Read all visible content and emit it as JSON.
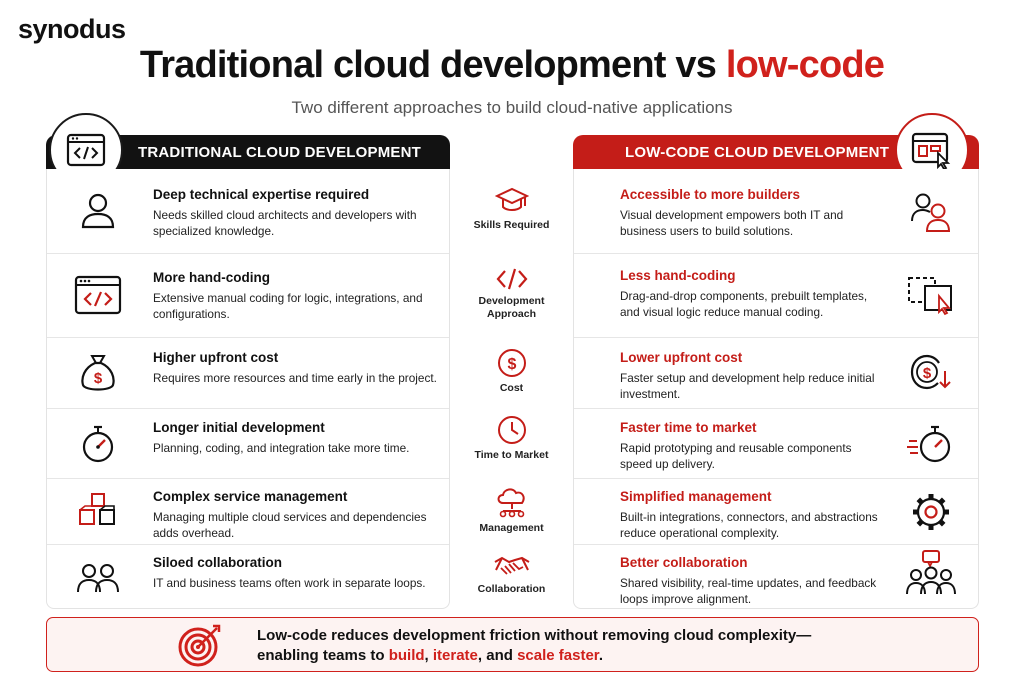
{
  "brand": {
    "logo": "synodus"
  },
  "header": {
    "title_main": "Traditional cloud development vs ",
    "title_accent": "low-code",
    "subtitle": "Two different approaches to build cloud-native applications"
  },
  "colors": {
    "accent": "#d0211c",
    "dark": "#121212"
  },
  "traditional": {
    "header": "TRADITIONAL CLOUD DEVELOPMENT",
    "header_icon": "code-window-icon",
    "rows": [
      {
        "title": "Deep technical expertise required",
        "desc": "Needs skilled cloud architects and developers with specialized knowledge.",
        "icon": "user-icon"
      },
      {
        "title": "More hand-coding",
        "desc": "Extensive manual coding for logic, integrations, and configurations.",
        "icon": "code-window-icon"
      },
      {
        "title": "Higher upfront cost",
        "desc": "Requires more resources and time early in the project.",
        "icon": "money-bag-icon"
      },
      {
        "title": "Longer initial development",
        "desc": "Planning, coding, and integration take more time.",
        "icon": "stopwatch-icon"
      },
      {
        "title": "Complex service management",
        "desc": "Managing multiple cloud services and dependencies adds overhead.",
        "icon": "cubes-icon"
      },
      {
        "title": "Siloed collaboration",
        "desc": "IT and business teams often work in separate loops.",
        "icon": "two-users-icon"
      }
    ]
  },
  "criteria": [
    {
      "label": "Skills Required",
      "icon": "graduation-cap-icon"
    },
    {
      "label": "Development Approach",
      "icon": "code-brackets-icon"
    },
    {
      "label": "Cost",
      "icon": "dollar-coin-icon"
    },
    {
      "label": "Time to Market",
      "icon": "clock-icon"
    },
    {
      "label": "Management",
      "icon": "cloud-network-icon"
    },
    {
      "label": "Collaboration",
      "icon": "handshake-icon"
    }
  ],
  "lowcode": {
    "header": "LOW-CODE CLOUD DEVELOPMENT",
    "header_icon": "visual-builder-icon",
    "rows": [
      {
        "title": "Accessible to more builders",
        "desc": "Visual development empowers both IT and business users to build solutions.",
        "icon": "users-icon"
      },
      {
        "title": "Less hand-coding",
        "desc": "Drag-and-drop components, prebuilt templates, and visual logic reduce manual coding.",
        "icon": "drag-drop-icon"
      },
      {
        "title": "Lower upfront cost",
        "desc": "Faster setup and development help reduce initial investment.",
        "icon": "dollar-down-icon"
      },
      {
        "title": "Faster time to market",
        "desc": "Rapid prototyping and reusable components speed up delivery.",
        "icon": "fast-stopwatch-icon"
      },
      {
        "title": "Simplified management",
        "desc": "Built-in integrations, connectors, and abstractions reduce operational complexity.",
        "icon": "gear-icon"
      },
      {
        "title": "Better collaboration",
        "desc": "Shared visibility, real-time updates, and feedback loops improve alignment.",
        "icon": "team-chat-icon"
      }
    ]
  },
  "footer": {
    "icon": "target-icon",
    "line1": "Low-code reduces development friction without removing cloud complexity—",
    "line2_prefix": "enabling teams to ",
    "build": "build",
    "sep1": ", ",
    "iterate": "iterate",
    "sep2": ", and ",
    "scale": "scale faster",
    "end": "."
  }
}
